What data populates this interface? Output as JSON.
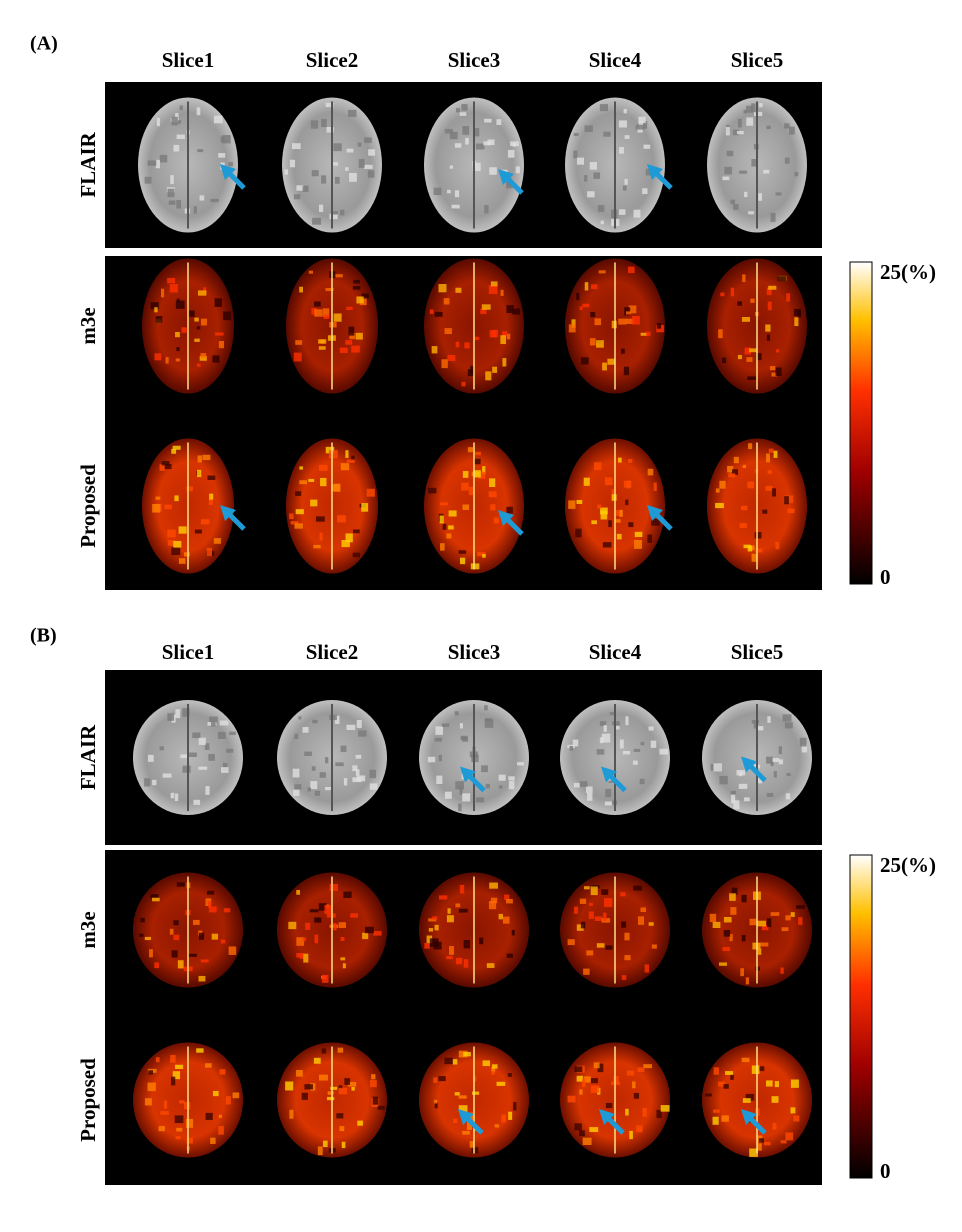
{
  "panels": [
    {
      "label": "(A)",
      "columns": [
        "Slice1",
        "Slice2",
        "Slice3",
        "Slice4",
        "Slice5"
      ],
      "rows": [
        "FLAIR",
        "m3e",
        "Proposed"
      ],
      "colorbar": {
        "max_label": "25(%)",
        "min_label": "0"
      }
    },
    {
      "label": "(B)",
      "columns": [
        "Slice1",
        "Slice2",
        "Slice3",
        "Slice4",
        "Slice5"
      ],
      "rows": [
        "FLAIR",
        "m3e",
        "Proposed"
      ],
      "colorbar": {
        "max_label": "25(%)",
        "min_label": "0"
      }
    }
  ]
}
